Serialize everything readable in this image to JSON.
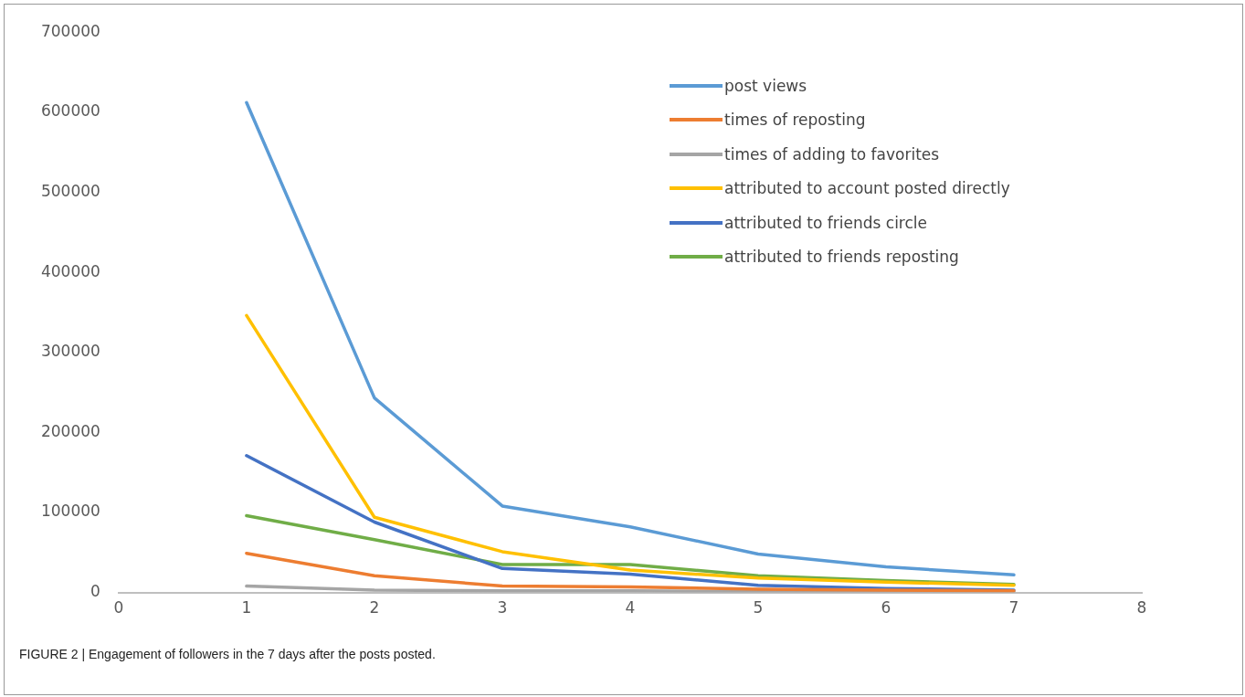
{
  "chart_data": {
    "type": "line",
    "title": "FIGURE 2 | Engagement of followers in the 7 days after the posts posted.",
    "x": [
      1,
      2,
      3,
      4,
      5,
      6,
      7
    ],
    "series": [
      {
        "name": "post views",
        "color": "#5b9bd5",
        "values": [
          612000,
          243000,
          108000,
          82000,
          48000,
          32000,
          22000
        ]
      },
      {
        "name": "times of reposting",
        "color": "#ed7d31",
        "values": [
          49000,
          21000,
          8000,
          7000,
          4000,
          3000,
          2000
        ]
      },
      {
        "name": "times of adding to favorites",
        "color": "#a5a5a5",
        "values": [
          8000,
          3000,
          2000,
          2000,
          1000,
          1000,
          1000
        ]
      },
      {
        "name": "attributed to account posted directly",
        "color": "#ffc000",
        "values": [
          346000,
          94000,
          51000,
          28000,
          18000,
          13000,
          9000
        ]
      },
      {
        "name": "attributed to friends circle",
        "color": "#4472c4",
        "values": [
          171000,
          88000,
          30000,
          23000,
          9000,
          5000,
          3000
        ]
      },
      {
        "name": "attributed to friends reposting",
        "color": "#70ad47",
        "values": [
          96000,
          66000,
          35000,
          35000,
          21000,
          15000,
          10000
        ]
      }
    ],
    "xlim": [
      0,
      8
    ],
    "xticks": [
      0,
      1,
      2,
      3,
      4,
      5,
      6,
      7,
      8
    ],
    "ylim": [
      0,
      700000
    ],
    "yticks": [
      0,
      100000,
      200000,
      300000,
      400000,
      500000,
      600000,
      700000
    ],
    "grid": false,
    "legend": "top right",
    "marker": "none",
    "line_style": "solid"
  }
}
